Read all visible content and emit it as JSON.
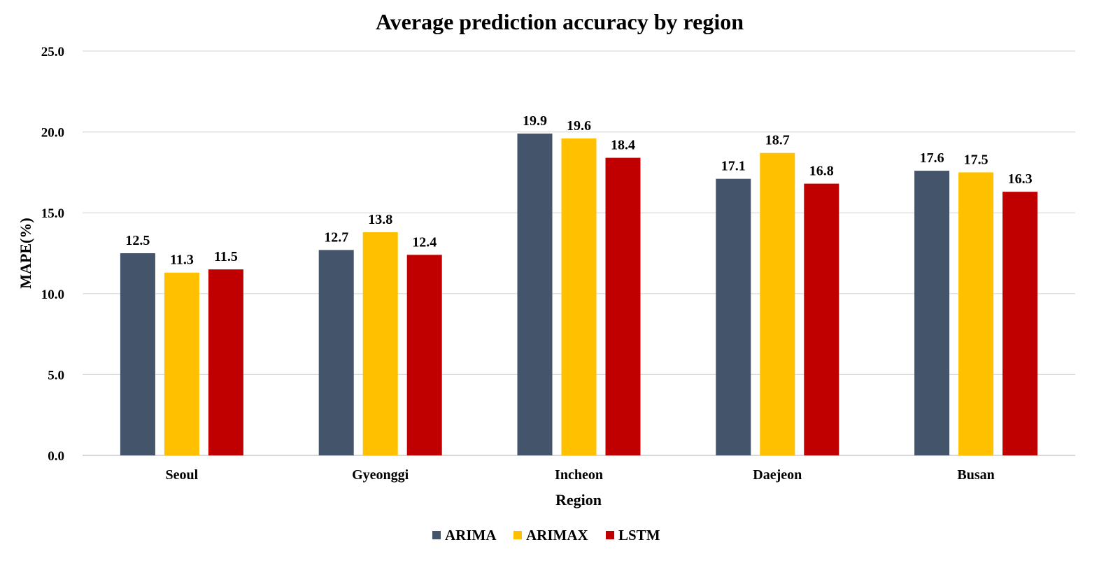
{
  "chart_data": {
    "type": "bar",
    "title": "Average prediction accuracy by region",
    "xlabel": "Region",
    "ylabel": "MAPE(%)",
    "ylim": [
      0,
      25
    ],
    "yticks": [
      "0.0",
      "5.0",
      "10.0",
      "15.0",
      "20.0",
      "25.0"
    ],
    "grid": true,
    "legend_position": "bottom",
    "categories": [
      "Seoul",
      "Gyeonggi",
      "Incheon",
      "Daejeon",
      "Busan"
    ],
    "series": [
      {
        "name": "ARIMA",
        "color": "#44546a",
        "values": [
          12.5,
          12.7,
          19.9,
          17.1,
          17.6
        ],
        "labels": [
          "12.5",
          "12.7",
          "19.9",
          "17.1",
          "17.6"
        ]
      },
      {
        "name": "ARIMAX",
        "color": "#ffc000",
        "values": [
          11.3,
          13.8,
          19.6,
          18.7,
          17.5
        ],
        "labels": [
          "11.3",
          "13.8",
          "19.6",
          "18.7",
          "17.5"
        ]
      },
      {
        "name": "LSTM",
        "color": "#c00000",
        "values": [
          11.5,
          12.4,
          18.4,
          16.8,
          16.3
        ],
        "labels": [
          "11.5",
          "12.4",
          "18.4",
          "16.8",
          "16.3"
        ]
      }
    ]
  }
}
